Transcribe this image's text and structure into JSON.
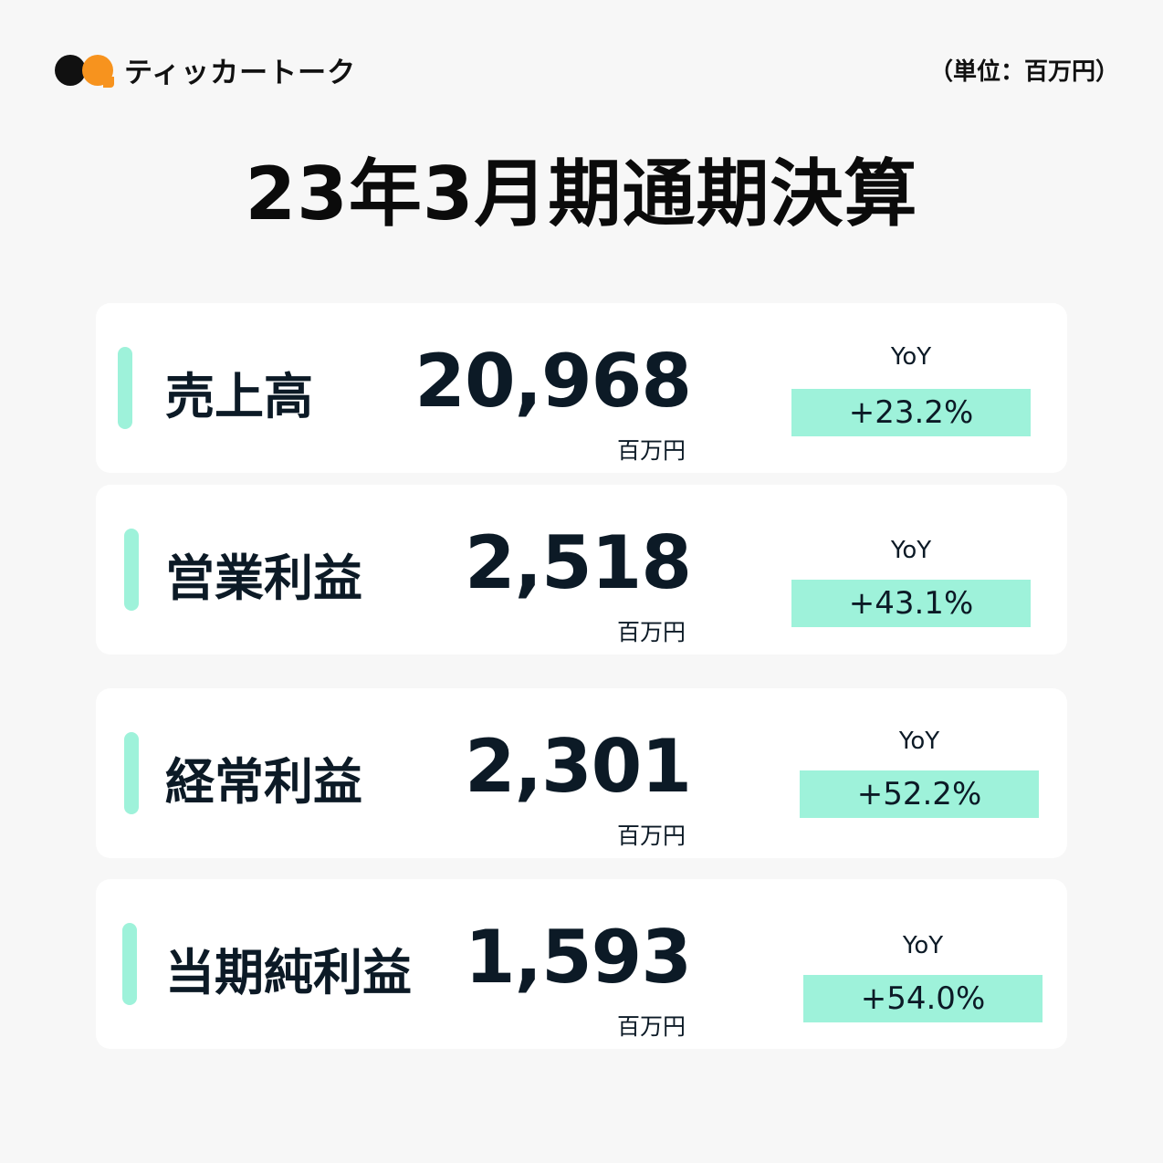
{
  "header": {
    "logo_text": "ティッカートーク",
    "unit_note": "（単位：百万円）"
  },
  "title": "23年3月期通期決算",
  "colors": {
    "accent": "#9ef2da",
    "logo_orange": "#f7931e",
    "text": "#0c1a26"
  },
  "metrics": [
    {
      "label": "売上高",
      "value": "20,968",
      "unit": "百万円",
      "yoy_label": "YoY",
      "yoy": "+23.2%"
    },
    {
      "label": "営業利益",
      "value": "2,518",
      "unit": "百万円",
      "yoy_label": "YoY",
      "yoy": "+43.1%"
    },
    {
      "label": "経常利益",
      "value": "2,301",
      "unit": "百万円",
      "yoy_label": "YoY",
      "yoy": "+52.2%"
    },
    {
      "label": "当期純利益",
      "value": "1,593",
      "unit": "百万円",
      "yoy_label": "YoY",
      "yoy": "+54.0%"
    }
  ]
}
